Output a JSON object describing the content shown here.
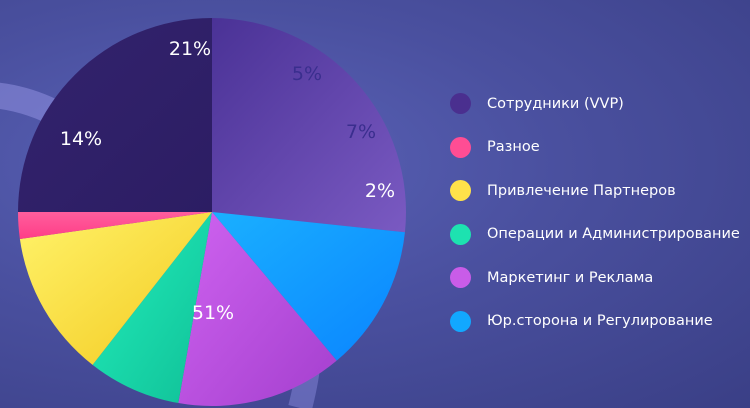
{
  "chart_data": {
    "type": "pie",
    "slices": [
      {
        "label": "",
        "value": 21,
        "display": "21%",
        "color": "#4c3a98"
      },
      {
        "label": "",
        "value": 5,
        "display": "5%",
        "color": "#5b49a8"
      },
      {
        "label": "",
        "value": 7,
        "display": "7%",
        "color": "#6451b0"
      },
      {
        "label": "",
        "value": 2,
        "display": "2%",
        "color": "#6e58b8"
      },
      {
        "label": "",
        "value": 51,
        "display": "51%",
        "color": "#b44fd6"
      },
      {
        "label": "",
        "value": 14,
        "display": "14%",
        "color": "#3a2a80"
      }
    ],
    "legend_position": "right"
  },
  "legend": {
    "items": [
      {
        "label": "Сотрудники (VVP)",
        "color": "#4a2f8f"
      },
      {
        "label": "Разное",
        "color": "#ff4d94"
      },
      {
        "label": "Привлечение Партнеров",
        "color": "#ffe24a"
      },
      {
        "label": "Операции и Администрирование",
        "color": "#1de2b0"
      },
      {
        "label": "Маркетинг и Реклама",
        "color": "#c95ce8"
      },
      {
        "label": "Юр.сторона и Регулирование",
        "color": "#12a8ff"
      }
    ]
  },
  "pie_labels": [
    "21%",
    "5%",
    "7%",
    "2%",
    "14%",
    "51%"
  ]
}
